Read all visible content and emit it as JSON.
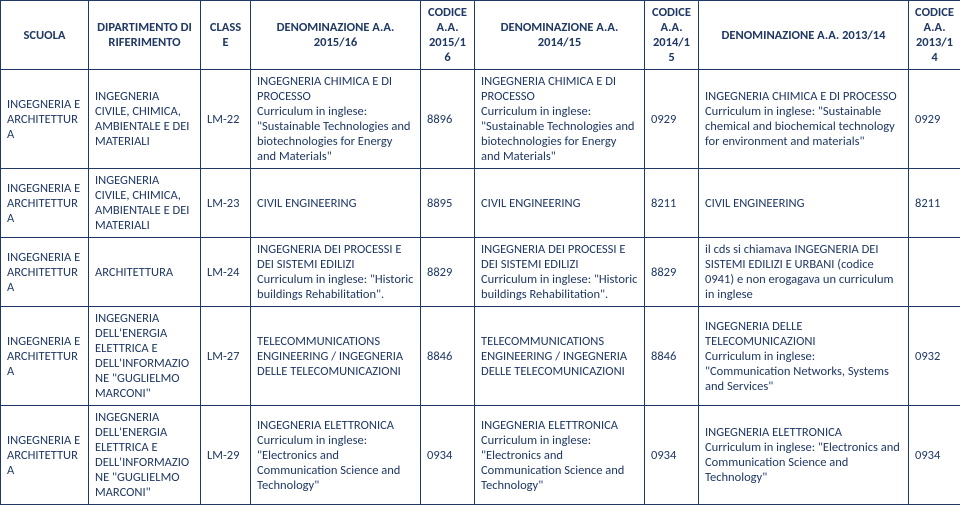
{
  "headers": {
    "scuola": "SCUOLA",
    "dipartimento": "DIPARTIMENTO DI RIFERIMENTO",
    "classe": "CLASSE",
    "denom1516": "DENOMINAZIONE A.A. 2015/16",
    "cod1516": "CODICE A.A. 2015/16",
    "denom1415": "DENOMINAZIONE A.A. 2014/15",
    "cod1415": "CODICE A.A. 2014/15",
    "denom1314": "DENOMINAZIONE A.A. 2013/14",
    "cod1314": "CODICE A.A. 2013/14"
  },
  "rows": [
    {
      "scuola": "INGEGNERIA E ARCHITETTURA",
      "dip": "INGEGNERIA CIVILE, CHIMICA, AMBIENTALE E DEI MATERIALI",
      "classe": "LM-22",
      "d1516": "INGEGNERIA CHIMICA E DI PROCESSO\nCurriculum in inglese: \"Sustainable Technologies and biotechnologies for Energy and Materials\"",
      "c1516": "8896",
      "d1415": "INGEGNERIA CHIMICA E DI PROCESSO\nCurriculum in inglese: \"Sustainable Technologies and biotechnologies for Energy and Materials\"",
      "c1415": "0929",
      "d1314": "INGEGNERIA CHIMICA E DI PROCESSO\nCurriculum in inglese: \"Sustainable chemical and biochemical technology for environment and materials\"",
      "c1314": "0929"
    },
    {
      "scuola": "INGEGNERIA E ARCHITETTURA",
      "dip": "INGEGNERIA CIVILE, CHIMICA, AMBIENTALE E DEI MATERIALI",
      "classe": "LM-23",
      "d1516": "CIVIL ENGINEERING",
      "c1516": "8895",
      "d1415": "CIVIL ENGINEERING",
      "c1415": "8211",
      "d1314": "CIVIL ENGINEERING",
      "c1314": "8211"
    },
    {
      "scuola": "INGEGNERIA E ARCHITETTURA",
      "dip": "ARCHITETTURA",
      "classe": "LM-24",
      "d1516": "INGEGNERIA DEI PROCESSI E DEI SISTEMI EDILIZI\nCurriculum in inglese: \"Historic buildings Rehabilitation\".",
      "c1516": "8829",
      "d1415": "INGEGNERIA DEI PROCESSI E DEI SISTEMI EDILIZI\nCurriculum in inglese: \"Historic buildings Rehabilitation\".",
      "c1415": "8829",
      "d1314": "il cds si chiamava INGEGNERIA DEI SISTEMI EDILIZI E URBANI (codice 0941) e non erogagava un curriculum in inglese",
      "c1314": ""
    },
    {
      "scuola": "INGEGNERIA E ARCHITETTURA",
      "dip": "INGEGNERIA DELL'ENERGIA ELETTRICA E DELL'INFORMAZIONE \"GUGLIELMO MARCONI\"",
      "classe": "LM-27",
      "d1516": "TELECOMMUNICATIONS ENGINEERING / INGEGNERIA DELLE TELECOMUNICAZIONI",
      "c1516": "8846",
      "d1415": "TELECOMMUNICATIONS ENGINEERING / INGEGNERIA DELLE TELECOMUNICAZIONI",
      "c1415": "8846",
      "d1314": "INGEGNERIA DELLE TELECOMUNICAZIONI\nCurriculum in inglese: \"Communication Networks, Systems and Services\"",
      "c1314": "0932"
    },
    {
      "scuola": "INGEGNERIA E ARCHITETTURA",
      "dip": "INGEGNERIA DELL'ENERGIA ELETTRICA E DELL'INFORMAZIONE \"GUGLIELMO MARCONI\"",
      "classe": "LM-29",
      "d1516": "INGEGNERIA ELETTRONICA\nCurriculum in inglese: \"Electronics and Communication Science and Technology\"",
      "c1516": "0934",
      "d1415": "INGEGNERIA ELETTRONICA\nCurriculum in inglese: \"Electronics and Communication Science and Technology\"",
      "c1415": "0934",
      "d1314": "INGEGNERIA ELETTRONICA\nCurriculum in inglese: \"Electronics and Communication Science and Technology\"",
      "c1314": "0934"
    }
  ]
}
